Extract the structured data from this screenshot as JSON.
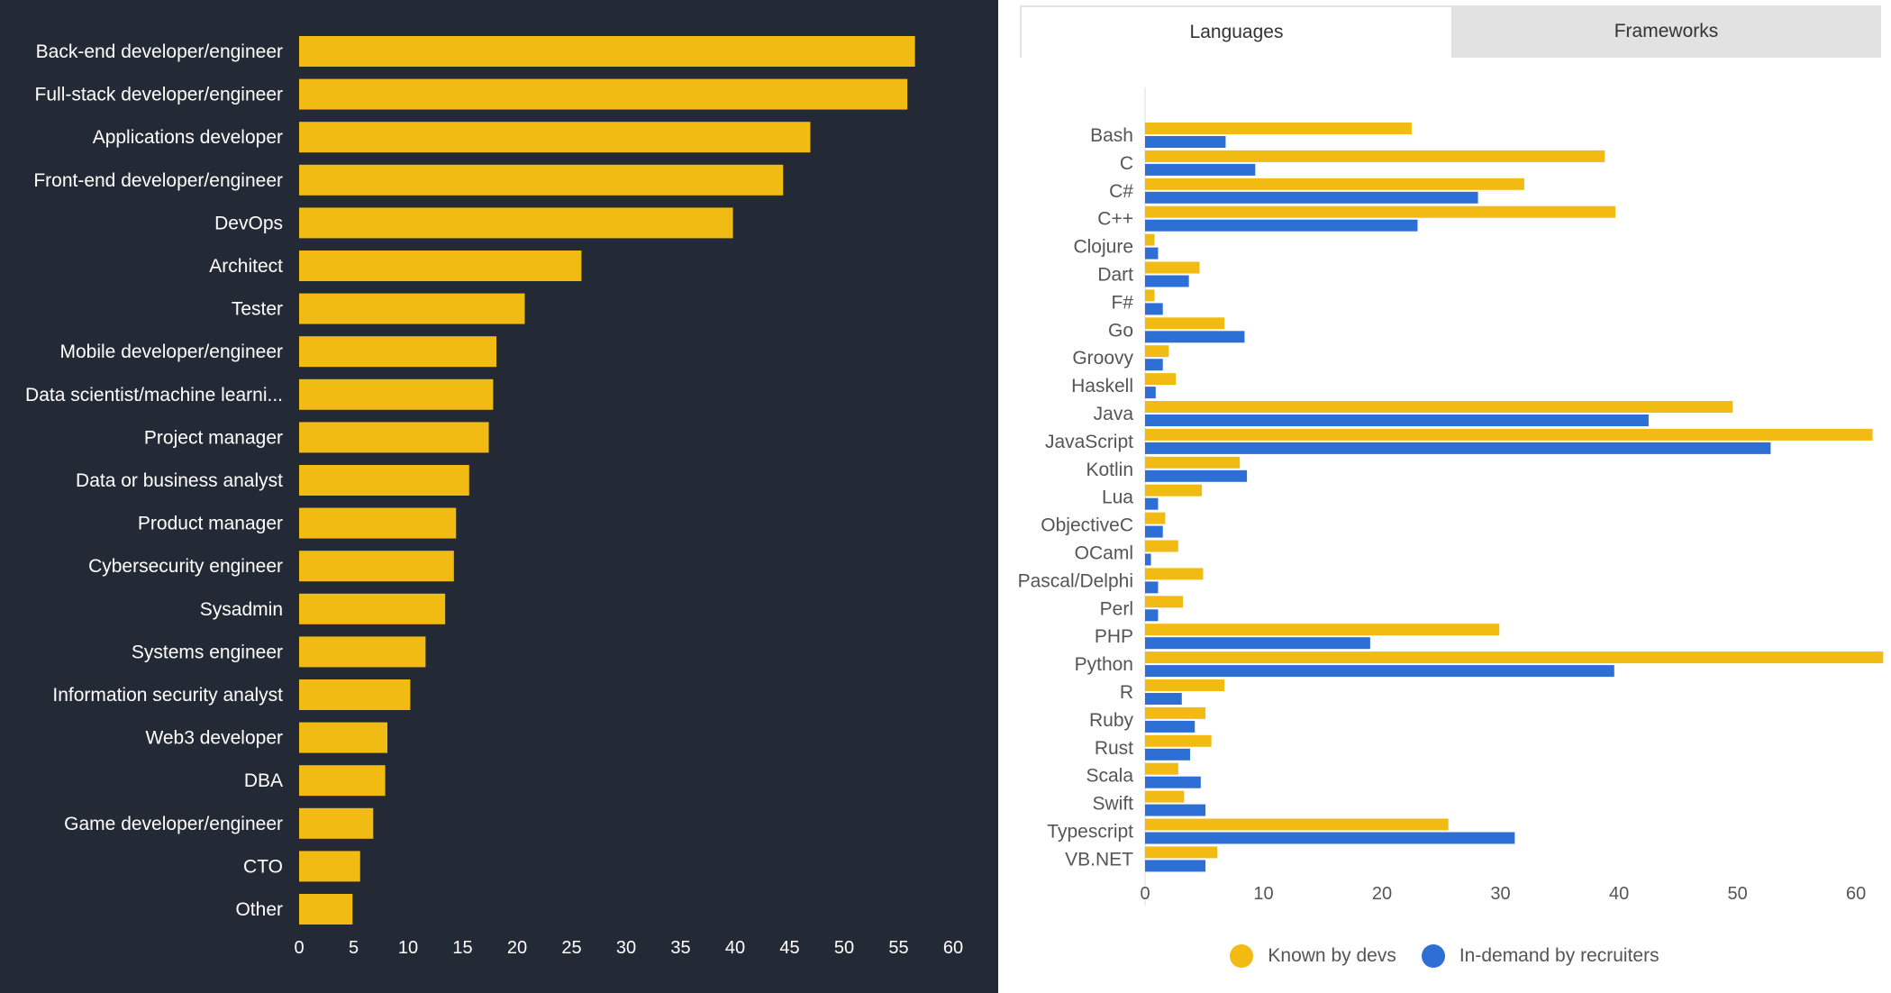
{
  "colors": {
    "left_background": "#242a35",
    "bar_yellow": "#f1bb13",
    "bar_blue": "#2e6fd6",
    "left_text": "#ffffff",
    "right_text": "#555555"
  },
  "tabs": [
    {
      "label": "Languages",
      "active": true
    },
    {
      "label": "Frameworks",
      "active": false
    }
  ],
  "legend": [
    {
      "label": "Known by devs",
      "color": "#f1bb13"
    },
    {
      "label": "In-demand by recruiters",
      "color": "#2e6fd6"
    }
  ],
  "chart_data": [
    {
      "type": "bar",
      "orientation": "horizontal",
      "title": "",
      "categories": [
        "Back-end developer/engineer",
        "Full-stack developer/engineer",
        "Applications developer",
        "Front-end developer/engineer",
        "DevOps",
        "Architect",
        "Tester",
        "Mobile developer/engineer",
        "Data scientist/machine learni...",
        "Project manager",
        "Data or business analyst",
        "Product manager",
        "Cybersecurity engineer",
        "Sysadmin",
        "Systems engineer",
        "Information security analyst",
        "Web3 developer",
        "DBA",
        "Game developer/engineer",
        "CTO",
        "Other"
      ],
      "values": [
        56.5,
        55.8,
        46.9,
        44.4,
        39.8,
        25.9,
        20.7,
        18.1,
        17.8,
        17.4,
        15.6,
        14.4,
        14.2,
        13.4,
        11.6,
        10.2,
        8.1,
        7.9,
        6.8,
        5.6,
        4.9
      ],
      "xlim": [
        0,
        60
      ],
      "xticks": [
        "0",
        "5",
        "10",
        "15",
        "20",
        "25",
        "30",
        "35",
        "40",
        "45",
        "50",
        "55",
        "60"
      ],
      "grid": false
    },
    {
      "type": "bar",
      "orientation": "horizontal",
      "title": "",
      "categories": [
        "Bash",
        "C",
        "C#",
        "C++",
        "Clojure",
        "Dart",
        "F#",
        "Go",
        "Groovy",
        "Haskell",
        "Java",
        "JavaScript",
        "Kotlin",
        "Lua",
        "ObjectiveC",
        "OCaml",
        "Pascal/Delphi",
        "Perl",
        "PHP",
        "Python",
        "R",
        "Ruby",
        "Rust",
        "Scala",
        "Swift",
        "Typescript",
        "VB.NET"
      ],
      "series": [
        {
          "name": "Known by devs",
          "color": "#f1bb13",
          "values": [
            22.5,
            38.8,
            32.0,
            39.7,
            0.8,
            4.6,
            0.8,
            6.7,
            2.0,
            2.6,
            49.6,
            61.4,
            8.0,
            4.8,
            1.7,
            2.8,
            4.9,
            3.2,
            29.9,
            62.3,
            6.7,
            5.1,
            5.6,
            2.8,
            3.3,
            25.6,
            6.1
          ]
        },
        {
          "name": "In-demand by recruiters",
          "color": "#2e6fd6",
          "values": [
            6.8,
            9.3,
            28.1,
            23.0,
            1.1,
            3.7,
            1.5,
            8.4,
            1.5,
            0.9,
            42.5,
            52.8,
            8.6,
            1.1,
            1.5,
            0.5,
            1.1,
            1.1,
            19.0,
            39.6,
            3.1,
            4.2,
            3.8,
            4.7,
            5.1,
            31.2,
            5.1
          ]
        }
      ],
      "xlim": [
        0,
        62.5
      ],
      "xticks": [
        "0",
        "10",
        "20",
        "30",
        "40",
        "50",
        "60"
      ],
      "grid": false
    }
  ]
}
